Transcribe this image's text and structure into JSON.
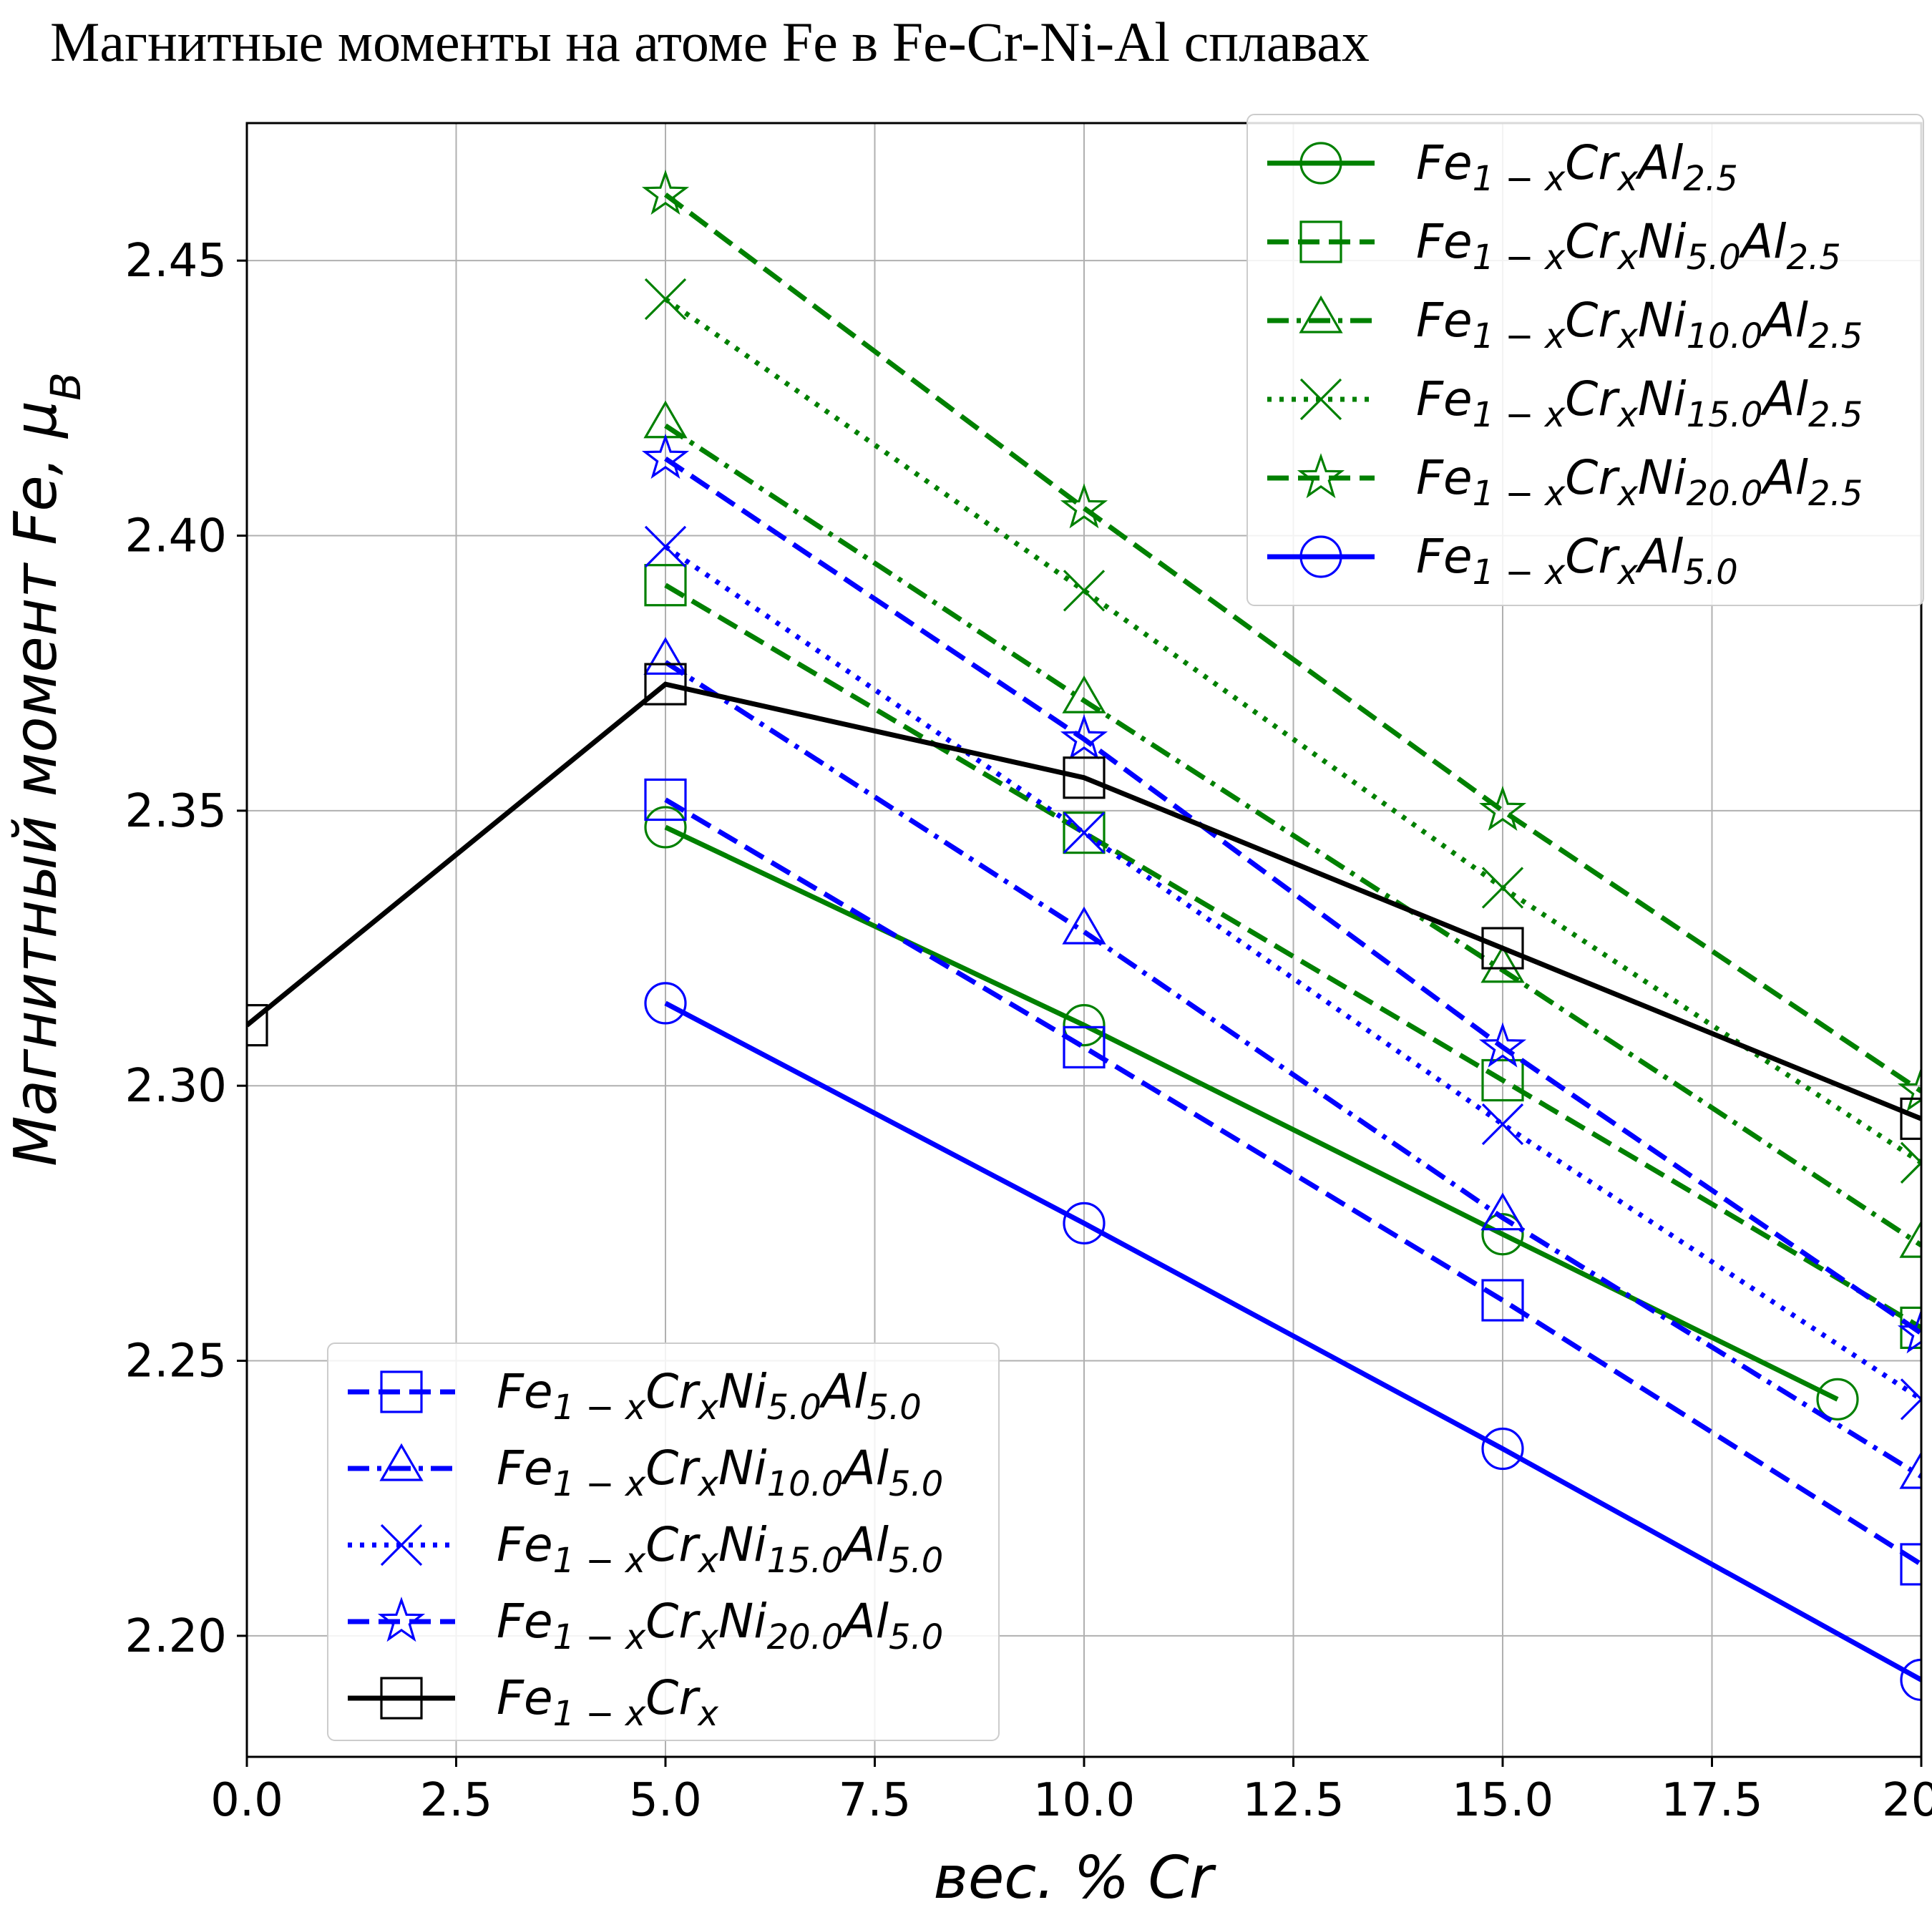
{
  "chart_data": {
    "type": "line",
    "title": "Магнитные моменты на атоме Fe в Fe-Cr-Ni-Al сплавах",
    "xlabel": "вес. % Cr",
    "ylabel": "Магнитный момент Fe, μB",
    "xlim": [
      0,
      20
    ],
    "ylim": [
      2.178,
      2.475
    ],
    "xticks": [
      "0.0",
      "2.5",
      "5.0",
      "7.5",
      "10.0",
      "12.5",
      "15.0",
      "17.5",
      "20"
    ],
    "xtick_values": [
      0,
      2.5,
      5,
      7.5,
      10,
      12.5,
      15,
      17.5,
      20
    ],
    "yticks": [
      "2.20",
      "2.25",
      "2.30",
      "2.35",
      "2.40",
      "2.45"
    ],
    "ytick_values": [
      2.2,
      2.25,
      2.3,
      2.35,
      2.4,
      2.45
    ],
    "grid": true,
    "legends": [
      "top-right",
      "bottom-left"
    ],
    "series": [
      {
        "label": [
          "Fe",
          "1 − x",
          "Cr",
          "x",
          "Al",
          "2.5",
          "",
          "",
          "",
          ""
        ],
        "color": "#008000",
        "dash": "solid",
        "marker": "circle",
        "legend": "top-right",
        "x": [
          5,
          10,
          15,
          19
        ],
        "y": [
          2.347,
          2.311,
          2.273,
          2.243
        ]
      },
      {
        "label": [
          "Fe",
          "1 − x",
          "Cr",
          "x",
          "Ni",
          "5.0",
          "Al",
          "2.5",
          "",
          ""
        ],
        "color": "#008000",
        "dash": "dashed",
        "marker": "square",
        "legend": "top-right",
        "x": [
          5,
          10,
          15,
          20
        ],
        "y": [
          2.391,
          2.346,
          2.301,
          2.256
        ]
      },
      {
        "label": [
          "Fe",
          "1 − x",
          "Cr",
          "x",
          "Ni",
          "10.0",
          "Al",
          "2.5",
          "",
          ""
        ],
        "color": "#008000",
        "dash": "dashdot",
        "marker": "triangle",
        "legend": "top-right",
        "x": [
          5,
          10,
          15,
          20
        ],
        "y": [
          2.42,
          2.37,
          2.321,
          2.271
        ]
      },
      {
        "label": [
          "Fe",
          "1 − x",
          "Cr",
          "x",
          "Ni",
          "15.0",
          "Al",
          "2.5",
          "",
          ""
        ],
        "color": "#008000",
        "dash": "dotted",
        "marker": "x",
        "legend": "top-right",
        "x": [
          5,
          10,
          15,
          20
        ],
        "y": [
          2.443,
          2.39,
          2.336,
          2.286
        ]
      },
      {
        "label": [
          "Fe",
          "1 − x",
          "Cr",
          "x",
          "Ni",
          "20.0",
          "Al",
          "2.5",
          "",
          ""
        ],
        "color": "#008000",
        "dash": "dashed",
        "marker": "star",
        "legend": "top-right",
        "x": [
          5,
          10,
          15,
          20
        ],
        "y": [
          2.462,
          2.405,
          2.35,
          2.299
        ]
      },
      {
        "label": [
          "Fe",
          "1 − x",
          "Cr",
          "x",
          "Al",
          "5.0",
          "",
          "",
          "",
          ""
        ],
        "color": "#0000ff",
        "dash": "solid",
        "marker": "circle",
        "legend": "top-right",
        "x": [
          5,
          10,
          15,
          20
        ],
        "y": [
          2.315,
          2.275,
          2.234,
          2.192
        ]
      },
      {
        "label": [
          "Fe",
          "1 − x",
          "Cr",
          "x",
          "Ni",
          "5.0",
          "Al",
          "5.0",
          "",
          ""
        ],
        "color": "#0000ff",
        "dash": "dashed",
        "marker": "square",
        "legend": "bottom-left",
        "x": [
          5,
          10,
          15,
          20
        ],
        "y": [
          2.352,
          2.307,
          2.261,
          2.213
        ]
      },
      {
        "label": [
          "Fe",
          "1 − x",
          "Cr",
          "x",
          "Ni",
          "10.0",
          "Al",
          "5.0",
          "",
          ""
        ],
        "color": "#0000ff",
        "dash": "dashdot",
        "marker": "triangle",
        "legend": "bottom-left",
        "x": [
          5,
          10,
          15,
          20
        ],
        "y": [
          2.377,
          2.328,
          2.276,
          2.229
        ]
      },
      {
        "label": [
          "Fe",
          "1 − x",
          "Cr",
          "x",
          "Ni",
          "15.0",
          "Al",
          "5.0",
          "",
          ""
        ],
        "color": "#0000ff",
        "dash": "dotted",
        "marker": "x",
        "legend": "bottom-left",
        "x": [
          5,
          10,
          15,
          20
        ],
        "y": [
          2.398,
          2.346,
          2.293,
          2.243
        ]
      },
      {
        "label": [
          "Fe",
          "1 − x",
          "Cr",
          "x",
          "Ni",
          "20.0",
          "Al",
          "5.0",
          "",
          ""
        ],
        "color": "#0000ff",
        "dash": "dashed",
        "marker": "star",
        "legend": "bottom-left",
        "x": [
          5,
          10,
          15,
          20
        ],
        "y": [
          2.414,
          2.363,
          2.307,
          2.255
        ]
      },
      {
        "label": [
          "Fe",
          "1 − x",
          "Cr",
          "x",
          "",
          "",
          "",
          "",
          "",
          ""
        ],
        "color": "#000000",
        "dash": "solid",
        "marker": "square",
        "legend": "bottom-left",
        "x": [
          0,
          5,
          10,
          15,
          20
        ],
        "y": [
          2.311,
          2.373,
          2.356,
          2.325,
          2.294
        ]
      }
    ]
  }
}
